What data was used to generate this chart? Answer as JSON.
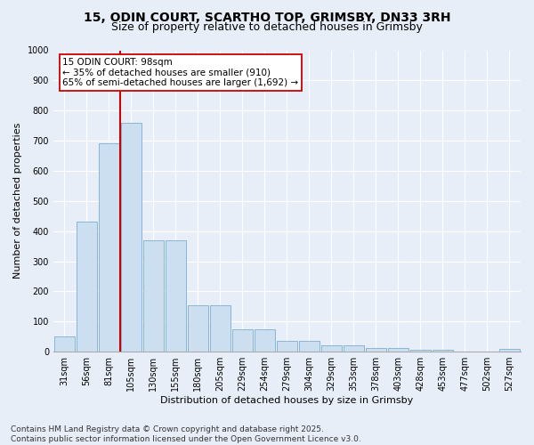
{
  "title_line1": "15, ODIN COURT, SCARTHO TOP, GRIMSBY, DN33 3RH",
  "title_line2": "Size of property relative to detached houses in Grimsby",
  "xlabel": "Distribution of detached houses by size in Grimsby",
  "ylabel": "Number of detached properties",
  "categories": [
    "31sqm",
    "56sqm",
    "81sqm",
    "105sqm",
    "130sqm",
    "155sqm",
    "180sqm",
    "205sqm",
    "229sqm",
    "254sqm",
    "279sqm",
    "304sqm",
    "329sqm",
    "353sqm",
    "378sqm",
    "403sqm",
    "428sqm",
    "453sqm",
    "477sqm",
    "502sqm",
    "527sqm"
  ],
  "bar_values": [
    50,
    430,
    690,
    760,
    370,
    370,
    155,
    155,
    75,
    75,
    35,
    35,
    22,
    22,
    12,
    12,
    6,
    6,
    1,
    1,
    8
  ],
  "bar_color": "#ccdff0",
  "bar_edge_color": "#7aaed0",
  "vline_color": "#cc0000",
  "annotation_line1": "15 ODIN COURT: 98sqm",
  "annotation_line2": "← 35% of detached houses are smaller (910)",
  "annotation_line3": "65% of semi-detached houses are larger (1,692) →",
  "annotation_box_color": "white",
  "annotation_box_edge": "#cc0000",
  "ylim": [
    0,
    1000
  ],
  "yticks": [
    0,
    100,
    200,
    300,
    400,
    500,
    600,
    700,
    800,
    900,
    1000
  ],
  "background_color": "#e8eef8",
  "plot_bg_color": "#e8eef8",
  "footer_line1": "Contains HM Land Registry data © Crown copyright and database right 2025.",
  "footer_line2": "Contains public sector information licensed under the Open Government Licence v3.0.",
  "title1_fontsize": 10,
  "title2_fontsize": 9,
  "axis_label_fontsize": 8,
  "tick_fontsize": 7,
  "footer_fontsize": 6.5,
  "annot_fontsize": 7.5
}
